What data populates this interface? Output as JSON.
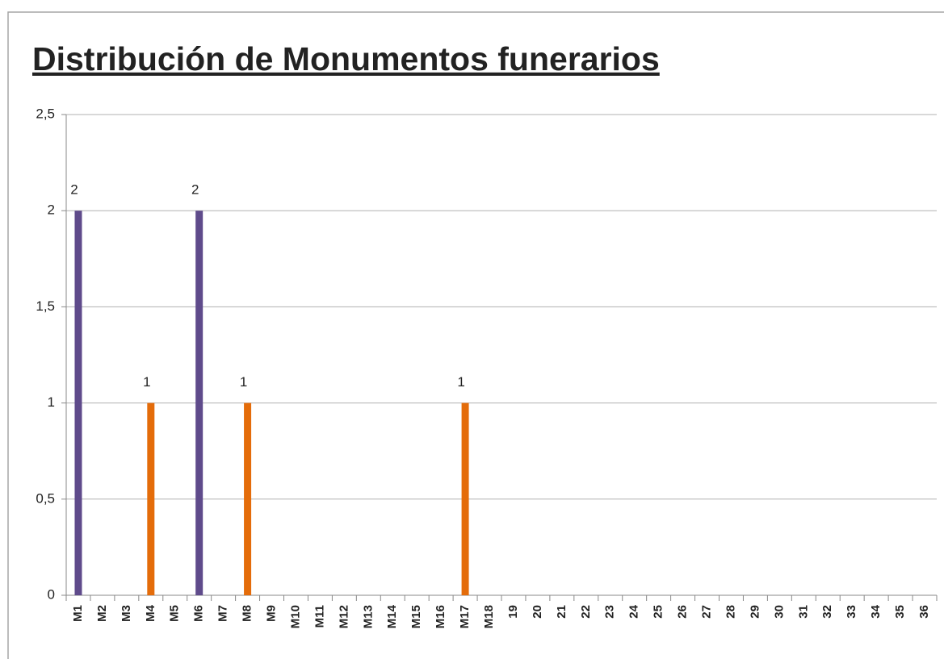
{
  "chart_data": {
    "type": "bar",
    "title": "Distribución de Monumentos  funerarios",
    "categories": [
      "M1",
      "M2",
      "M3",
      "M4",
      "M5",
      "M6",
      "M7",
      "M8",
      "M9",
      "M10",
      "M11",
      "M12",
      "M13",
      "M14",
      "M15",
      "M16",
      "M17",
      "M18",
      "19",
      "20",
      "21",
      "22",
      "23",
      "24",
      "25",
      "26",
      "27",
      "28",
      "29",
      "30",
      "31",
      "32",
      "33",
      "34",
      "35",
      "36"
    ],
    "values": [
      2,
      null,
      null,
      1,
      null,
      2,
      null,
      1,
      null,
      null,
      null,
      null,
      null,
      null,
      null,
      null,
      1,
      null,
      null,
      null,
      null,
      null,
      null,
      null,
      null,
      null,
      null,
      null,
      null,
      null,
      null,
      null,
      null,
      null,
      null,
      null
    ],
    "colors": [
      "#5f4b8b",
      null,
      null,
      "#e46c0a",
      null,
      "#5f4b8b",
      null,
      "#e46c0a",
      null,
      null,
      null,
      null,
      null,
      null,
      null,
      null,
      "#e46c0a",
      null,
      null,
      null,
      null,
      null,
      null,
      null,
      null,
      null,
      null,
      null,
      null,
      null,
      null,
      null,
      null,
      null,
      null,
      null
    ],
    "ylim": [
      0,
      2.5
    ],
    "yticks": [
      0,
      {
        "value": 0.5,
        "label": "0,5"
      },
      1,
      {
        "value": 1.5,
        "label": "1,5"
      },
      2,
      {
        "value": 2.5,
        "label": "2,5"
      }
    ],
    "grid": true
  }
}
